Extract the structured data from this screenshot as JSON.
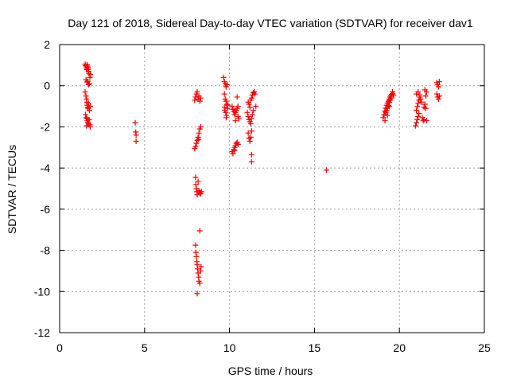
{
  "chart_data": {
    "type": "scatter",
    "title": "Day 121 of 2018, Sidereal Day-to-day VTEC variation (SDTVAR) for receiver dav1",
    "xlabel": "GPS time / hours",
    "ylabel": "SDTVAR / TECUs",
    "xlim": [
      0,
      25
    ],
    "ylim": [
      -12,
      2
    ],
    "xticks": [
      0,
      5,
      10,
      15,
      20,
      25
    ],
    "yticks": [
      -12,
      -10,
      -8,
      -6,
      -4,
      -2,
      0,
      2
    ],
    "xtick_labels": [
      "0",
      "5",
      "10",
      "15",
      "20",
      "25"
    ],
    "ytick_labels": [
      "-12",
      "-10",
      "-8",
      "-6",
      "-4",
      "-2",
      "0",
      "2"
    ],
    "grid": true,
    "marker": "+",
    "colors": {
      "series": "#ff0000",
      "axis": "#000000",
      "grid": "#a0a0a0"
    },
    "series": [
      {
        "name": "SDTVAR",
        "points": [
          [
            1.5,
            1.05
          ],
          [
            1.53,
            0.98
          ],
          [
            1.56,
            0.92
          ],
          [
            1.58,
            0.85
          ],
          [
            1.6,
            0.78
          ],
          [
            1.62,
            1.02
          ],
          [
            1.64,
            0.95
          ],
          [
            1.66,
            0.88
          ],
          [
            1.68,
            0.8
          ],
          [
            1.7,
            0.7
          ],
          [
            1.55,
            0.3
          ],
          [
            1.6,
            0.18
          ],
          [
            1.65,
            0.22
          ],
          [
            1.7,
            0.05
          ],
          [
            1.75,
            0.1
          ],
          [
            1.78,
            0.4
          ],
          [
            1.8,
            0.55
          ],
          [
            1.72,
            0.6
          ],
          [
            1.5,
            -0.3
          ],
          [
            1.55,
            -0.5
          ],
          [
            1.58,
            -0.65
          ],
          [
            1.6,
            -0.8
          ],
          [
            1.62,
            -0.95
          ],
          [
            1.65,
            -1.05
          ],
          [
            1.68,
            -1.1
          ],
          [
            1.7,
            -0.85
          ],
          [
            1.75,
            -1.2
          ],
          [
            1.8,
            -1.0
          ],
          [
            1.52,
            -1.4
          ],
          [
            1.56,
            -1.55
          ],
          [
            1.6,
            -1.6
          ],
          [
            1.63,
            -1.7
          ],
          [
            1.66,
            -1.78
          ],
          [
            1.7,
            -1.85
          ],
          [
            1.74,
            -1.65
          ],
          [
            1.78,
            -1.9
          ],
          [
            1.8,
            -2.0
          ],
          [
            1.58,
            -1.95
          ],
          [
            4.45,
            -1.8
          ],
          [
            4.48,
            -2.25
          ],
          [
            4.5,
            -2.4
          ],
          [
            4.5,
            -2.7
          ],
          [
            7.95,
            -3.05
          ],
          [
            8.0,
            -2.95
          ],
          [
            8.05,
            -2.8
          ],
          [
            8.1,
            -2.65
          ],
          [
            8.15,
            -2.5
          ],
          [
            8.2,
            -2.3
          ],
          [
            8.25,
            -2.1
          ],
          [
            8.3,
            -2.0
          ],
          [
            8.18,
            -2.6
          ],
          [
            8.0,
            -0.55
          ],
          [
            8.05,
            -0.4
          ],
          [
            8.1,
            -0.3
          ],
          [
            8.15,
            -0.65
          ],
          [
            8.2,
            -0.5
          ],
          [
            8.25,
            -0.75
          ],
          [
            8.3,
            -0.6
          ],
          [
            7.95,
            -0.7
          ],
          [
            8.0,
            -4.45
          ],
          [
            8.02,
            -4.8
          ],
          [
            8.05,
            -5.0
          ],
          [
            8.08,
            -5.15
          ],
          [
            8.1,
            -5.3
          ],
          [
            8.15,
            -4.65
          ],
          [
            8.2,
            -5.1
          ],
          [
            8.25,
            -5.2
          ],
          [
            8.3,
            -5.25
          ],
          [
            8.35,
            -5.15
          ],
          [
            8.25,
            -7.05
          ],
          [
            8.0,
            -7.75
          ],
          [
            8.02,
            -8.1
          ],
          [
            8.05,
            -8.3
          ],
          [
            8.08,
            -8.55
          ],
          [
            8.1,
            -8.7
          ],
          [
            8.12,
            -8.9
          ],
          [
            8.15,
            -9.1
          ],
          [
            8.18,
            -9.3
          ],
          [
            8.2,
            -9.5
          ],
          [
            8.25,
            -9.6
          ],
          [
            8.3,
            -9.0
          ],
          [
            8.32,
            -8.8
          ],
          [
            8.1,
            -10.1
          ],
          [
            9.65,
            0.4
          ],
          [
            9.7,
            0.2
          ],
          [
            9.75,
            0.1
          ],
          [
            9.8,
            -0.05
          ],
          [
            9.85,
            0.05
          ],
          [
            9.7,
            -0.4
          ],
          [
            9.75,
            -0.65
          ],
          [
            9.8,
            -0.75
          ],
          [
            9.85,
            -0.9
          ],
          [
            9.7,
            -1.05
          ],
          [
            9.72,
            -1.2
          ],
          [
            9.78,
            -1.3
          ],
          [
            9.82,
            -1.45
          ],
          [
            9.88,
            -1.1
          ],
          [
            9.9,
            -0.95
          ],
          [
            9.8,
            -1.55
          ],
          [
            10.15,
            -3.2
          ],
          [
            10.2,
            -3.3
          ],
          [
            10.25,
            -3.1
          ],
          [
            10.3,
            -3.0
          ],
          [
            10.35,
            -2.9
          ],
          [
            10.4,
            -2.8
          ],
          [
            10.45,
            -2.75
          ],
          [
            10.5,
            -2.85
          ],
          [
            10.3,
            -3.15
          ],
          [
            10.15,
            -1.0
          ],
          [
            10.2,
            -1.15
          ],
          [
            10.25,
            -1.25
          ],
          [
            10.3,
            -1.4
          ],
          [
            10.35,
            -1.3
          ],
          [
            10.4,
            -1.2
          ],
          [
            10.45,
            -1.1
          ],
          [
            10.5,
            -1.5
          ],
          [
            10.55,
            -1.6
          ],
          [
            10.35,
            -1.7
          ],
          [
            10.45,
            -0.55
          ],
          [
            10.5,
            -1.0
          ],
          [
            11.1,
            -2.3
          ],
          [
            11.15,
            -2.55
          ],
          [
            11.2,
            -2.7
          ],
          [
            11.25,
            -2.5
          ],
          [
            11.3,
            -2.2
          ],
          [
            11.05,
            -1.3
          ],
          [
            11.1,
            -1.5
          ],
          [
            11.15,
            -1.65
          ],
          [
            11.2,
            -1.75
          ],
          [
            11.25,
            -1.85
          ],
          [
            11.3,
            -1.6
          ],
          [
            11.35,
            -1.4
          ],
          [
            11.4,
            -1.2
          ],
          [
            11.1,
            -0.8
          ],
          [
            11.15,
            -0.9
          ],
          [
            11.2,
            -1.05
          ],
          [
            11.25,
            -0.7
          ],
          [
            11.3,
            -0.6
          ],
          [
            11.35,
            -0.45
          ],
          [
            11.4,
            -0.35
          ],
          [
            11.45,
            -0.3
          ],
          [
            11.5,
            -0.4
          ],
          [
            11.55,
            -1.0
          ],
          [
            11.3,
            -3.35
          ],
          [
            11.3,
            -3.7
          ],
          [
            15.7,
            -4.1
          ],
          [
            19.05,
            -1.55
          ],
          [
            19.1,
            -1.4
          ],
          [
            19.15,
            -1.25
          ],
          [
            19.2,
            -1.1
          ],
          [
            19.25,
            -0.95
          ],
          [
            19.3,
            -0.85
          ],
          [
            19.35,
            -0.75
          ],
          [
            19.4,
            -0.65
          ],
          [
            19.45,
            -0.55
          ],
          [
            19.5,
            -0.48
          ],
          [
            19.55,
            -0.42
          ],
          [
            19.6,
            -0.38
          ],
          [
            19.65,
            -0.45
          ],
          [
            19.2,
            -1.3
          ],
          [
            19.25,
            -1.2
          ],
          [
            19.3,
            -1.05
          ],
          [
            19.35,
            -0.95
          ],
          [
            19.4,
            -0.8
          ],
          [
            19.45,
            -0.7
          ],
          [
            19.5,
            -0.62
          ],
          [
            19.15,
            -1.7
          ],
          [
            19.3,
            -1.45
          ],
          [
            19.4,
            -1.0
          ],
          [
            19.55,
            -0.55
          ],
          [
            19.6,
            -0.3
          ],
          [
            20.95,
            -1.95
          ],
          [
            21.0,
            -1.8
          ],
          [
            21.05,
            -1.65
          ],
          [
            21.1,
            -1.5
          ],
          [
            21.15,
            -1.35
          ],
          [
            21.0,
            -1.2
          ],
          [
            21.05,
            -1.0
          ],
          [
            21.1,
            -0.85
          ],
          [
            21.15,
            -0.7
          ],
          [
            21.2,
            -0.55
          ],
          [
            21.0,
            -0.4
          ],
          [
            21.1,
            -0.3
          ],
          [
            21.2,
            -0.45
          ],
          [
            21.25,
            -0.65
          ],
          [
            21.3,
            -0.8
          ],
          [
            21.35,
            -1.55
          ],
          [
            21.4,
            -1.7
          ],
          [
            21.45,
            -1.65
          ],
          [
            21.6,
            -1.7
          ],
          [
            21.45,
            -1.05
          ],
          [
            21.5,
            -0.9
          ],
          [
            21.55,
            -0.5
          ],
          [
            21.6,
            -0.3
          ],
          [
            21.5,
            -0.2
          ],
          [
            21.55,
            -1.1
          ],
          [
            22.2,
            0.15
          ],
          [
            22.25,
            0.05
          ],
          [
            22.3,
            -0.05
          ],
          [
            22.2,
            -0.4
          ],
          [
            22.25,
            -0.55
          ],
          [
            22.3,
            -0.65
          ],
          [
            22.35,
            -0.5
          ],
          [
            22.35,
            0.2
          ]
        ]
      }
    ]
  }
}
